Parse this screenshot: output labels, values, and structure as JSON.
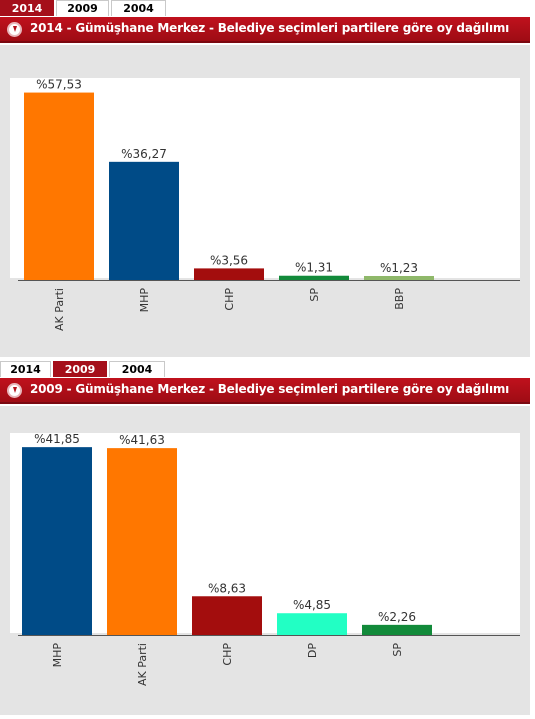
{
  "panels": [
    {
      "tabs": [
        {
          "label": "2014",
          "active": true
        },
        {
          "label": "2009",
          "active": false
        },
        {
          "label": "2004",
          "active": false
        }
      ],
      "header": {
        "title": "2014 - Gümüşhane Merkez - Belediye seçimleri partilere göre oy dağılımı"
      }
    },
    {
      "tabs": [
        {
          "label": "2014",
          "active": false
        },
        {
          "label": "2009",
          "active": true
        },
        {
          "label": "2004",
          "active": false
        }
      ],
      "header": {
        "title": "2009 - Gümüşhane Merkez - Belediye seçimleri partilere göre oy dağılımı"
      }
    }
  ],
  "chart_data": [
    {
      "type": "bar",
      "categories": [
        "AK Parti",
        "MHP",
        "CHP",
        "SP",
        "BBP"
      ],
      "values": [
        57.53,
        36.27,
        3.56,
        1.31,
        1.23
      ],
      "data_labels": [
        "%57,53",
        "%36,27",
        "%3,56",
        "%1,31",
        "%1,23"
      ],
      "colors": [
        "#ff7700",
        "#004b87",
        "#a30d0d",
        "#128a3a",
        "#8fb86a"
      ],
      "ylim": [
        0,
        62
      ],
      "grid": false,
      "legend": "none"
    },
    {
      "type": "bar",
      "categories": [
        "MHP",
        "AK Parti",
        "CHP",
        "DP",
        "SP"
      ],
      "values": [
        41.85,
        41.63,
        8.63,
        4.85,
        2.26
      ],
      "data_labels": [
        "%41,85",
        "%41,63",
        "%8,63",
        "%4,85",
        "%2,26"
      ],
      "colors": [
        "#004b87",
        "#ff7700",
        "#a30d0d",
        "#22ffc4",
        "#128a3a"
      ],
      "ylim": [
        0,
        45
      ],
      "grid": false,
      "legend": "none"
    }
  ]
}
